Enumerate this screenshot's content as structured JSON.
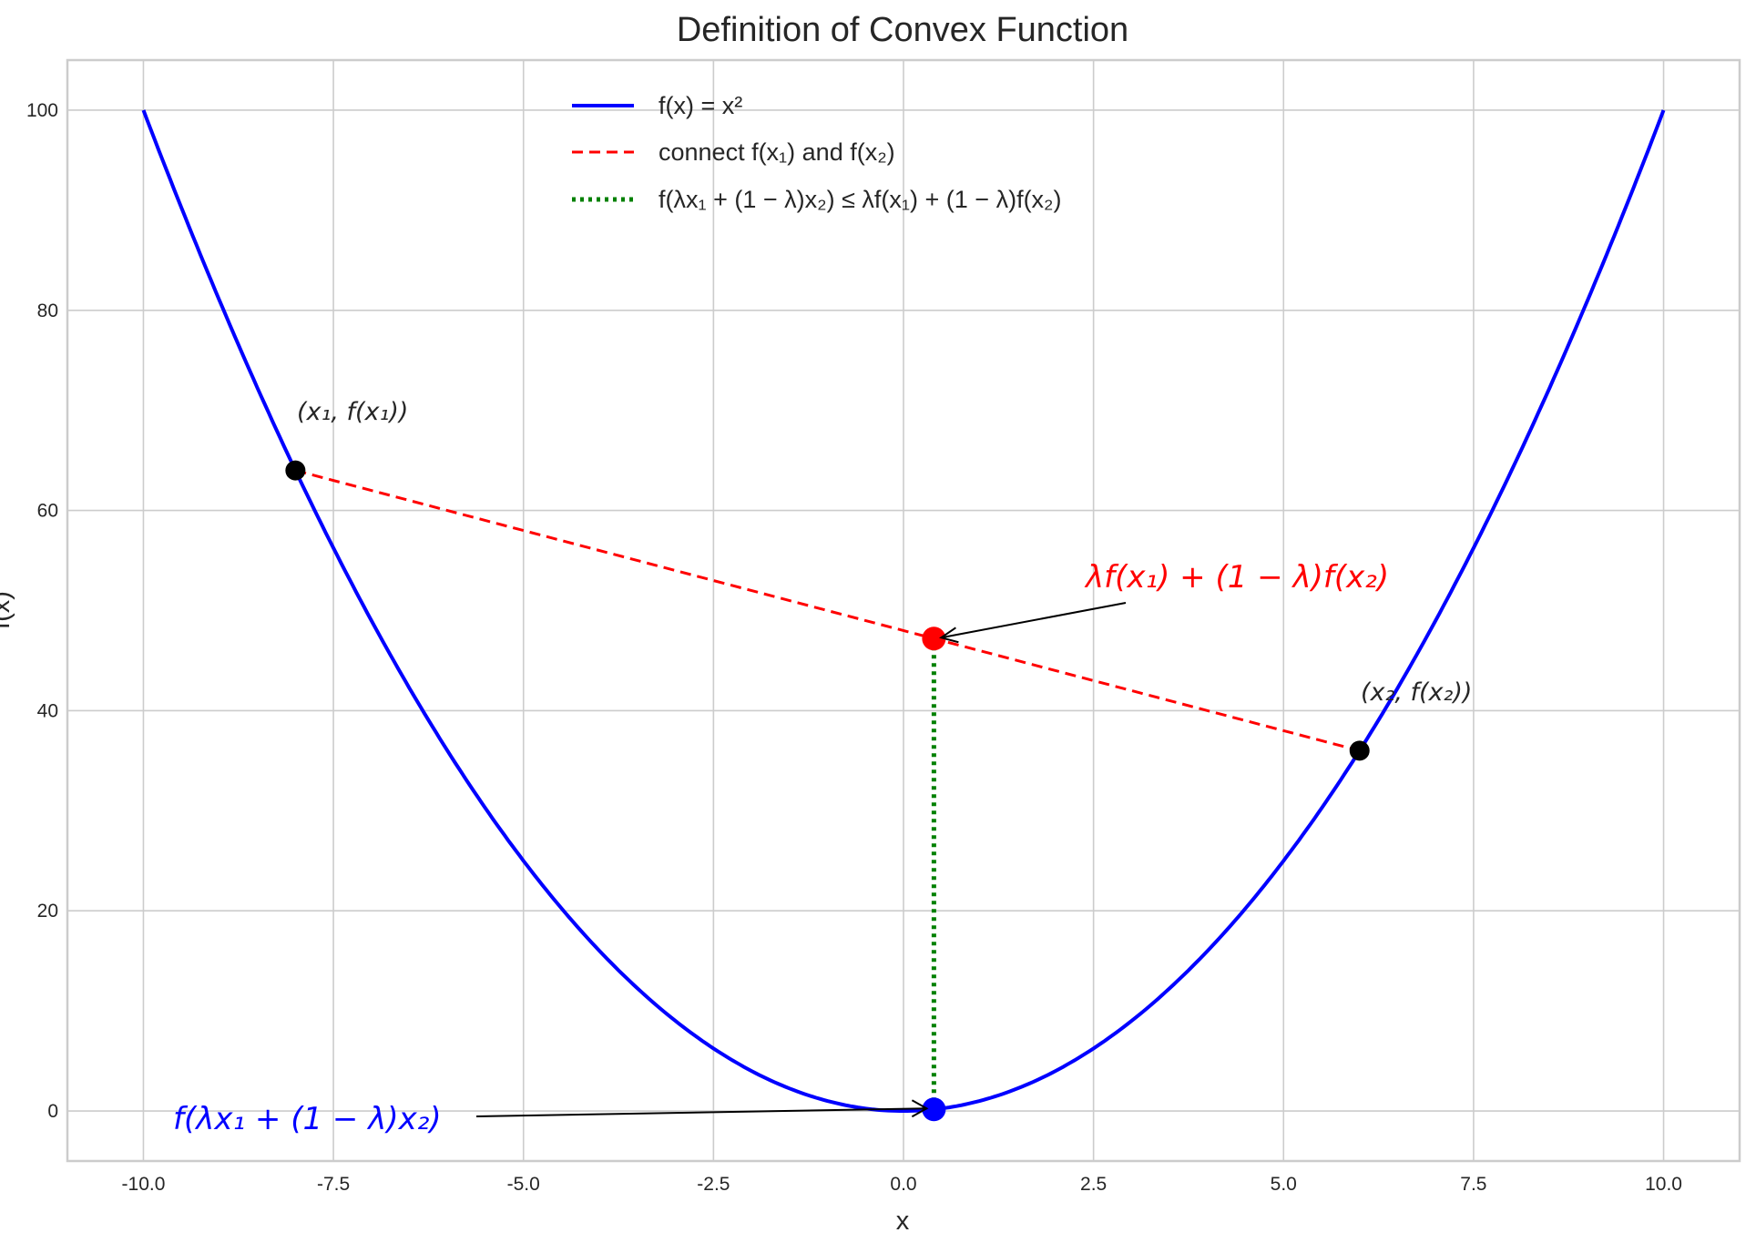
{
  "chart_data": {
    "type": "line",
    "title": "Definition of Convex Function",
    "xlabel": "x",
    "ylabel": "f(x)",
    "xlim": [
      -11,
      11
    ],
    "ylim": [
      -5,
      105
    ],
    "x_ticks": [
      "-10.0",
      "-7.5",
      "-5.0",
      "-2.5",
      "0.0",
      "2.5",
      "5.0",
      "7.5",
      "10.0"
    ],
    "y_ticks": [
      "0",
      "20",
      "40",
      "60",
      "80",
      "100"
    ],
    "grid": true,
    "legend_position": "top-center",
    "series": [
      {
        "name": "f(x) = x²",
        "function": "x^2",
        "x_range": [
          -10,
          10
        ],
        "color": "#0000ff",
        "style": "solid"
      },
      {
        "name": "connect f(x₁) and f(x₂)",
        "x": [
          -8,
          6
        ],
        "y": [
          64,
          36
        ],
        "color": "#ff0000",
        "style": "dashed"
      },
      {
        "name": "f(λx₁ + (1 − λ)x₂) ≤ λf(x₁) + (1 − λ)f(x₂)",
        "x": [
          0.4,
          0.4
        ],
        "y": [
          0.16,
          47.2
        ],
        "color": "#008000",
        "style": "dotted"
      }
    ],
    "points": [
      {
        "x": -8,
        "y": 64,
        "color": "#000000"
      },
      {
        "x": 6,
        "y": 36,
        "color": "#000000"
      },
      {
        "x": 0.4,
        "y": 47.2,
        "color": "#ff0000"
      },
      {
        "x": 0.4,
        "y": 0.16,
        "color": "#0000ff"
      }
    ],
    "annotations": [
      {
        "text": "(x₁, f(x₁))",
        "color": "#262626"
      },
      {
        "text": "(x₂, f(x₂))",
        "color": "#262626"
      },
      {
        "text": "λf(x₁) + (1 − λ)f(x₂)",
        "color": "#ff0000",
        "arrow_to": [
          0.4,
          47.2
        ]
      },
      {
        "text": "f(λx₁ + (1 − λ)x₂)",
        "color": "#0000ff",
        "arrow_to": [
          0.4,
          0.16
        ]
      }
    ]
  }
}
